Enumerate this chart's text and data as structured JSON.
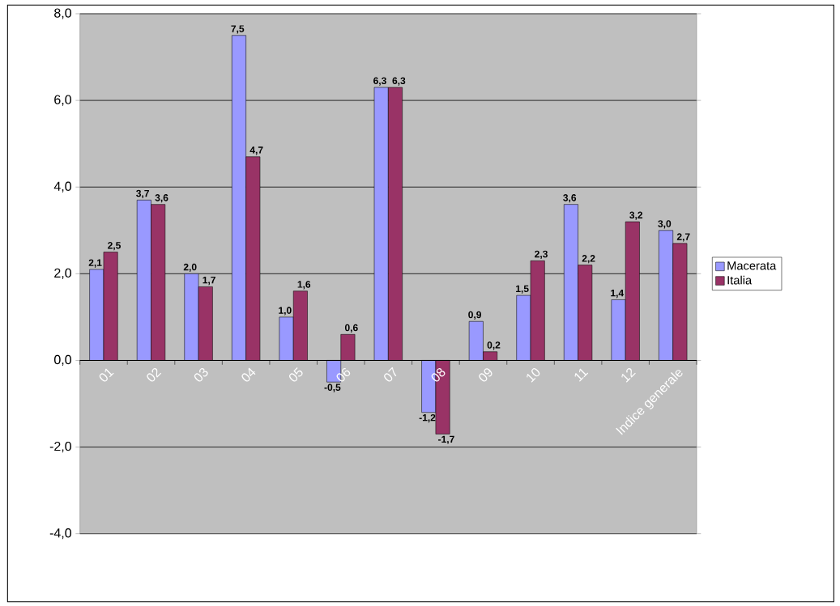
{
  "chart_data": {
    "type": "bar",
    "categories": [
      "01",
      "02",
      "03",
      "04",
      "05",
      "06",
      "07",
      "08",
      "09",
      "10",
      "11",
      "12",
      "Indice generale"
    ],
    "series": [
      {
        "name": "Macerata",
        "color": "#9999ff",
        "values": [
          2.1,
          3.7,
          2.0,
          7.5,
          1.0,
          -0.5,
          6.3,
          -1.2,
          0.9,
          1.5,
          3.6,
          1.4,
          3.0
        ],
        "value_labels": [
          "2,1",
          "3,7",
          "2,0",
          "7,5",
          "1,0",
          "-0,5",
          "6,3",
          "-1,2",
          "0,9",
          "1,5",
          "3,6",
          "1,4",
          "3,0"
        ]
      },
      {
        "name": "Italia",
        "color": "#993366",
        "values": [
          2.5,
          3.6,
          1.7,
          4.7,
          1.6,
          0.6,
          6.3,
          -1.7,
          0.2,
          2.3,
          2.2,
          3.2,
          2.7
        ],
        "value_labels": [
          "2,5",
          "3,6",
          "1,7",
          "4,7",
          "1,6",
          "0,6",
          "6,3",
          "-1,7",
          "0,2",
          "2,3",
          "2,2",
          "3,2",
          "2,7"
        ]
      }
    ],
    "ylim": [
      -4,
      8
    ],
    "yticks": [
      {
        "value": -4,
        "label": "-4,0"
      },
      {
        "value": -2,
        "label": "-2,0"
      },
      {
        "value": 0,
        "label": "0,0"
      },
      {
        "value": 2,
        "label": "2,0"
      },
      {
        "value": 4,
        "label": "4,0"
      },
      {
        "value": 6,
        "label": "6,0"
      },
      {
        "value": 8,
        "label": "8,0"
      }
    ],
    "grid": "y",
    "legend": "right"
  }
}
